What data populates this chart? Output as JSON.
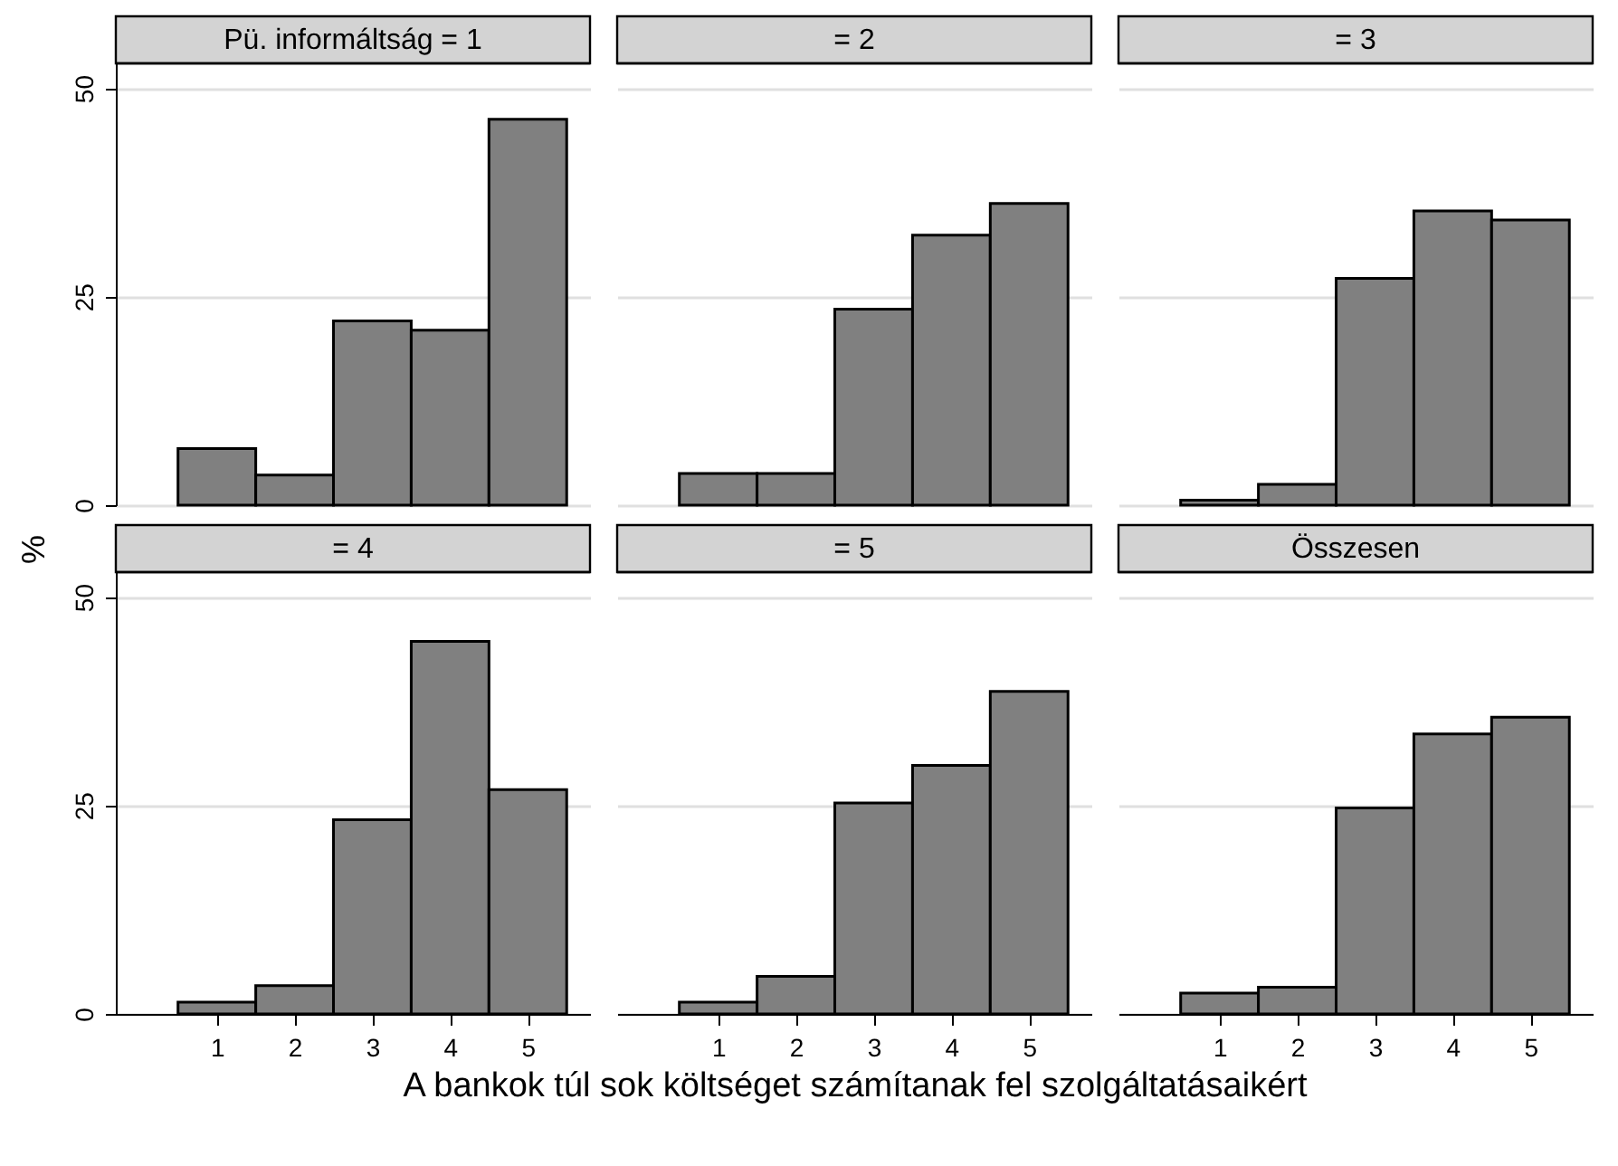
{
  "chart_data": [
    {
      "type": "histogram",
      "title": "Pü. informáltság = 1",
      "bins": [
        0.5,
        1.5,
        2.5,
        3.5,
        4.5,
        5.5
      ],
      "values": [
        6.8,
        3.6,
        22.1,
        21.0,
        46.3
      ],
      "color": "#808080",
      "xlim": [
        -0.3,
        5.8
      ],
      "xticks": [
        1,
        2,
        3,
        4,
        5
      ],
      "ylim": [
        0,
        53
      ],
      "yticks": [
        0,
        25,
        50
      ],
      "grid": "y",
      "tick_labels": "y"
    },
    {
      "type": "histogram",
      "title": "= 2",
      "bins": [
        0.5,
        1.5,
        2.5,
        3.5,
        4.5,
        5.5
      ],
      "values": [
        3.8,
        3.8,
        23.5,
        32.4,
        36.2
      ],
      "color": "#808080",
      "xlim": [
        -0.3,
        5.8
      ],
      "xticks": [
        1,
        2,
        3,
        4,
        5
      ],
      "ylim": [
        0,
        53
      ],
      "yticks": [
        0,
        25,
        50
      ],
      "grid": "y",
      "tick_labels": false
    },
    {
      "type": "histogram",
      "title": "= 3",
      "bins": [
        0.5,
        1.5,
        2.5,
        3.5,
        4.5,
        5.5
      ],
      "values": [
        0.6,
        2.5,
        27.2,
        35.3,
        34.2
      ],
      "color": "#808080",
      "xlim": [
        -0.3,
        5.8
      ],
      "xticks": [
        1,
        2,
        3,
        4,
        5
      ],
      "ylim": [
        0,
        53
      ],
      "yticks": [
        0,
        25,
        50
      ],
      "grid": "y",
      "tick_labels": false
    },
    {
      "type": "histogram",
      "title": "= 4",
      "ylabel": "%",
      "bins": [
        0.5,
        1.5,
        2.5,
        3.5,
        4.5,
        5.5
      ],
      "values": [
        1.4,
        3.4,
        23.3,
        44.7,
        26.9
      ],
      "color": "#808080",
      "xlim": [
        -0.3,
        5.8
      ],
      "xticks": [
        1,
        2,
        3,
        4,
        5
      ],
      "ylim": [
        0,
        53
      ],
      "yticks": [
        0,
        25,
        50
      ],
      "grid": "y"
    },
    {
      "type": "histogram",
      "title": "= 5",
      "xlabel": "A bankok túl sok költséget számítanak fel szolgáltatásaikért",
      "bins": [
        0.5,
        1.5,
        2.5,
        3.5,
        4.5,
        5.5
      ],
      "values": [
        1.4,
        4.5,
        25.3,
        29.8,
        38.7
      ],
      "color": "#808080",
      "xlim": [
        -0.3,
        5.8
      ],
      "xticks": [
        1,
        2,
        3,
        4,
        5
      ],
      "ylim": [
        0,
        53
      ],
      "yticks": [
        0,
        25,
        50
      ],
      "grid": "y",
      "tick_labels": "x"
    },
    {
      "type": "histogram",
      "title": "Összesen",
      "bins": [
        0.5,
        1.5,
        2.5,
        3.5,
        4.5,
        5.5
      ],
      "values": [
        2.5,
        3.2,
        24.7,
        33.6,
        35.6
      ],
      "color": "#808080",
      "xlim": [
        -0.3,
        5.8
      ],
      "xticks": [
        1,
        2,
        3,
        4,
        5
      ],
      "ylim": [
        0,
        53
      ],
      "yticks": [
        0,
        25,
        50
      ],
      "grid": "y",
      "tick_labels": "x"
    }
  ]
}
